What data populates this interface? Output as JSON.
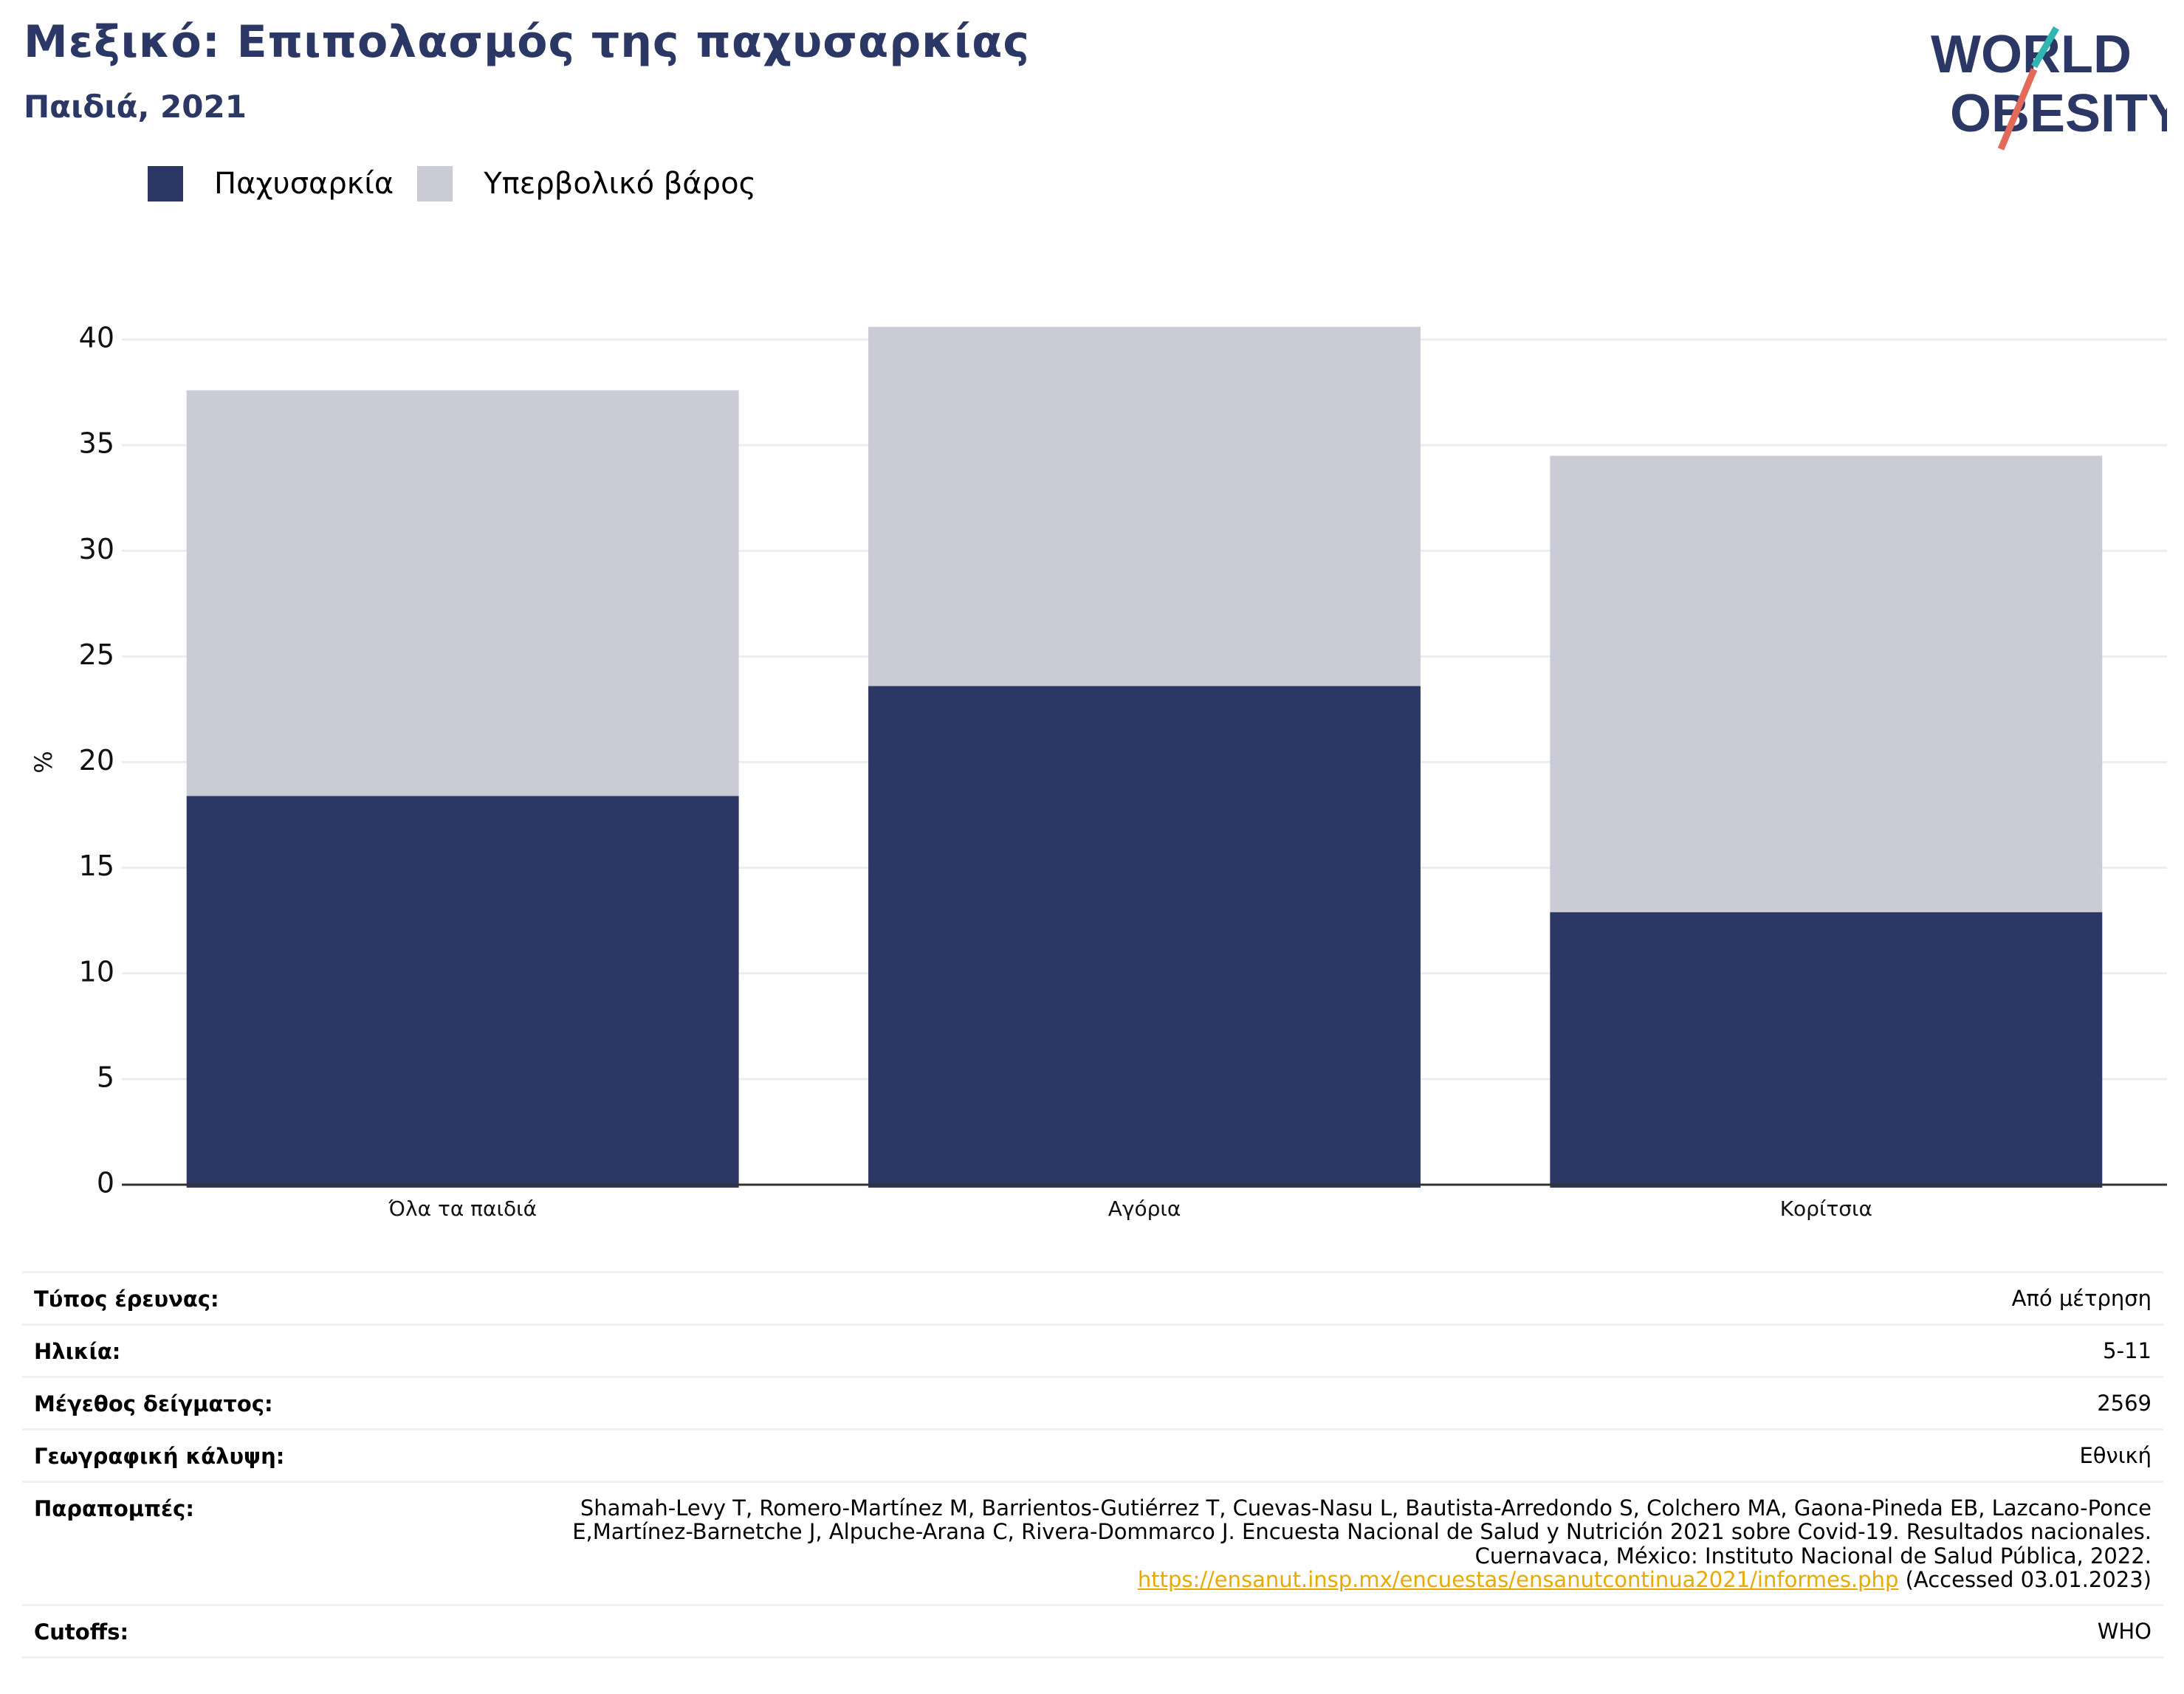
{
  "header": {
    "title": "Μεξικό: Επιπολασμός της παχυσαρκίας",
    "subtitle": "Παιδιά, 2021"
  },
  "logo": {
    "line1": "WORLD",
    "line2": "OBESITY"
  },
  "colors": {
    "obesity": "#2b3764",
    "overweight": "#cacbd7",
    "accent_teal": "#2fb6b1",
    "accent_red": "#e36a5b",
    "link": "#e8a900"
  },
  "legend": {
    "items": [
      {
        "label": "Παχυσαρκία",
        "color": "#2b3764"
      },
      {
        "label": "Υπερβολικό βάρος",
        "color": "#cacbd7"
      }
    ]
  },
  "chart_data": {
    "type": "bar",
    "stacked": true,
    "categories": [
      "Όλα τα παιδιά",
      "Αγόρια",
      "Κορίτσια"
    ],
    "series": [
      {
        "name": "Παχυσαρκία",
        "values": [
          18.4,
          23.6,
          12.9
        ]
      },
      {
        "name": "Υπερβολικό βάρος",
        "values": [
          19.2,
          17.0,
          21.6
        ]
      }
    ],
    "ylabel": "%",
    "ylim": [
      0,
      40
    ],
    "yticks": [
      0,
      5,
      10,
      15,
      20,
      25,
      30,
      35,
      40
    ],
    "grid": true,
    "legend_position": "top-left"
  },
  "info": {
    "rows": [
      {
        "label": "Τύπος έρευνας:",
        "value": "Από μέτρηση"
      },
      {
        "label": "Ηλικία:",
        "value": "5-11"
      },
      {
        "label": "Μέγεθος δείγματος:",
        "value": "2569"
      },
      {
        "label": "Γεωγραφική κάλυψη:",
        "value": "Εθνική"
      }
    ],
    "references": {
      "label": "Παραπομπές:",
      "text": "Shamah-Levy T, Romero-Martínez M, Barrientos-Gutiérrez T, Cuevas-Nasu L, Bautista-Arredondo S, Colchero MA, Gaona-Pineda EB, Lazcano-Ponce E,Martínez-Barnetche J, Alpuche-Arana C, Rivera-Dommarco J. Encuesta Nacional de Salud y Nutrición 2021 sobre Covid-19. Resultados nacionales. Cuernavaca, México: Instituto Nacional de Salud Pública, 2022.",
      "link": "https://ensanut.insp.mx/encuestas/ensanutcontinua2021/informes.php",
      "accessed": " (Accessed 03.01.2023)"
    },
    "cutoffs": {
      "label": "Cutoffs:",
      "value": "WHO"
    }
  }
}
